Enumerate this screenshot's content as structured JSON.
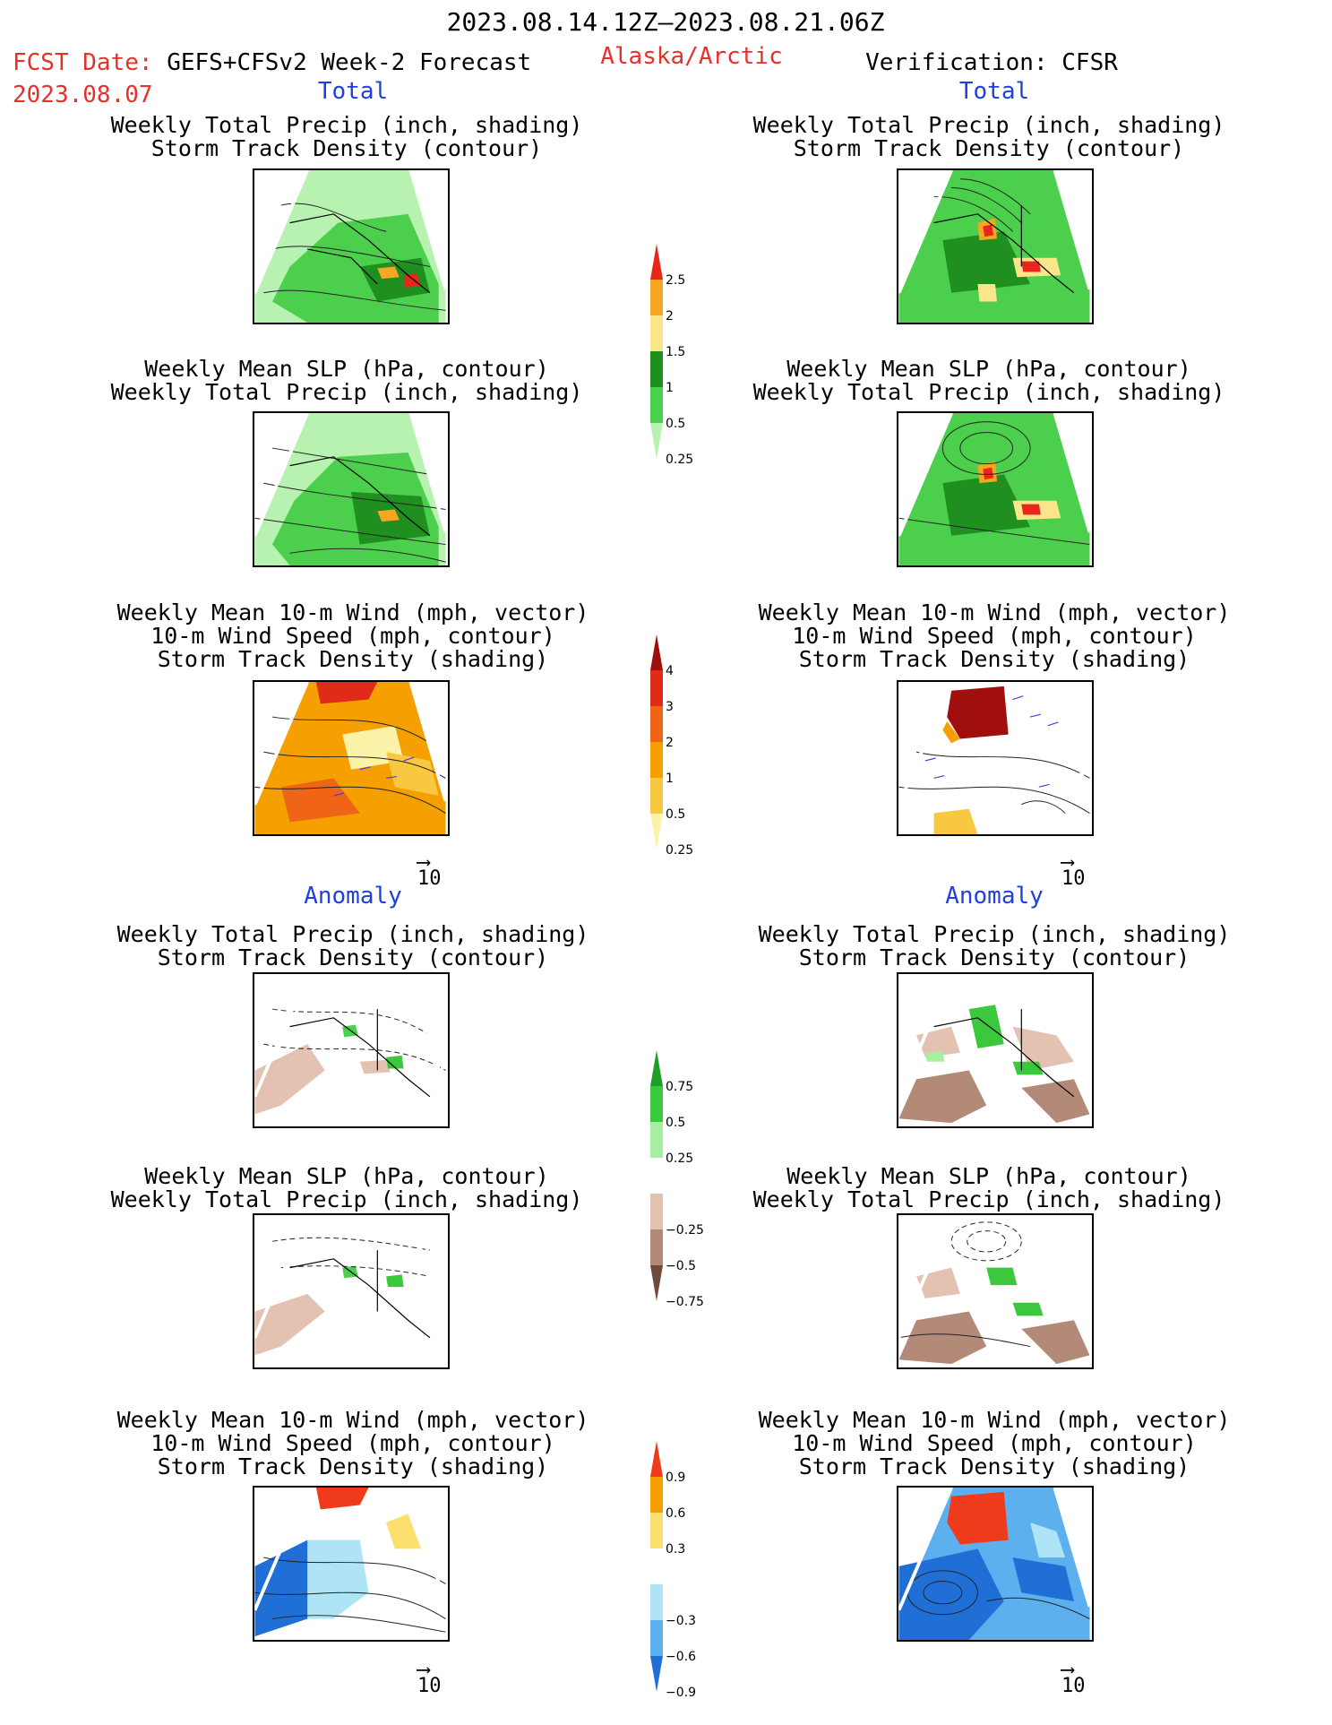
{
  "header": {
    "date_range": "2023.08.14.12Z–2023.08.21.06Z",
    "fcst_label": "FCST Date:",
    "fcst_model": "GEFS+CFSv2 Week-2 Forecast",
    "fcst_date": "2023.08.07",
    "region": "Alaska/Arctic",
    "verification": "Verification: CFSR"
  },
  "sections": {
    "total": "Total",
    "anomaly": "Anomaly"
  },
  "panel_titles": {
    "precip_storm": [
      "Weekly Total Precip (inch, shading)",
      "Storm Track Density (contour)"
    ],
    "slp_precip": [
      "Weekly Mean SLP (hPa, contour)",
      "Weekly Total Precip (inch, shading)"
    ],
    "wind_storm": [
      "Weekly Mean 10-m Wind (mph, vector)",
      "10-m Wind Speed (mph, contour)",
      "Storm Track Density (shading)"
    ]
  },
  "wind_ref_label": "10",
  "colorbars": {
    "precip_total": {
      "labels": [
        "2.5",
        "2",
        "1.5",
        "1",
        "0.5",
        "0.25"
      ],
      "colors": [
        "#e8261c",
        "#f5a623",
        "#fbe58a",
        "#1f8f1f",
        "#4ccf4c",
        "#b8f2b0"
      ]
    },
    "storm_total": {
      "labels": [
        "4",
        "3",
        "2",
        "1",
        "0.5",
        "0.25"
      ],
      "colors": [
        "#a00e0e",
        "#e02a1a",
        "#f06418",
        "#f5a000",
        "#f8c840",
        "#fdf3a8"
      ]
    },
    "precip_anom": {
      "labels": [
        "0.75",
        "0.5",
        "0.25",
        "−0.25",
        "−0.5",
        "−0.75"
      ],
      "colors": [
        "#1f9f2a",
        "#3cc83c",
        "#a8eea0",
        "#ffffff",
        "#e4c2b2",
        "#b38a78",
        "#6e4a3c"
      ]
    },
    "storm_anom": {
      "labels": [
        "0.9",
        "0.6",
        "0.3",
        "−0.3",
        "−0.6",
        "−0.9"
      ],
      "colors": [
        "#ef3b1c",
        "#f5a000",
        "#fbe070",
        "#ffffff",
        "#aee4f5",
        "#5cb0ee",
        "#1f6fd6"
      ]
    }
  }
}
